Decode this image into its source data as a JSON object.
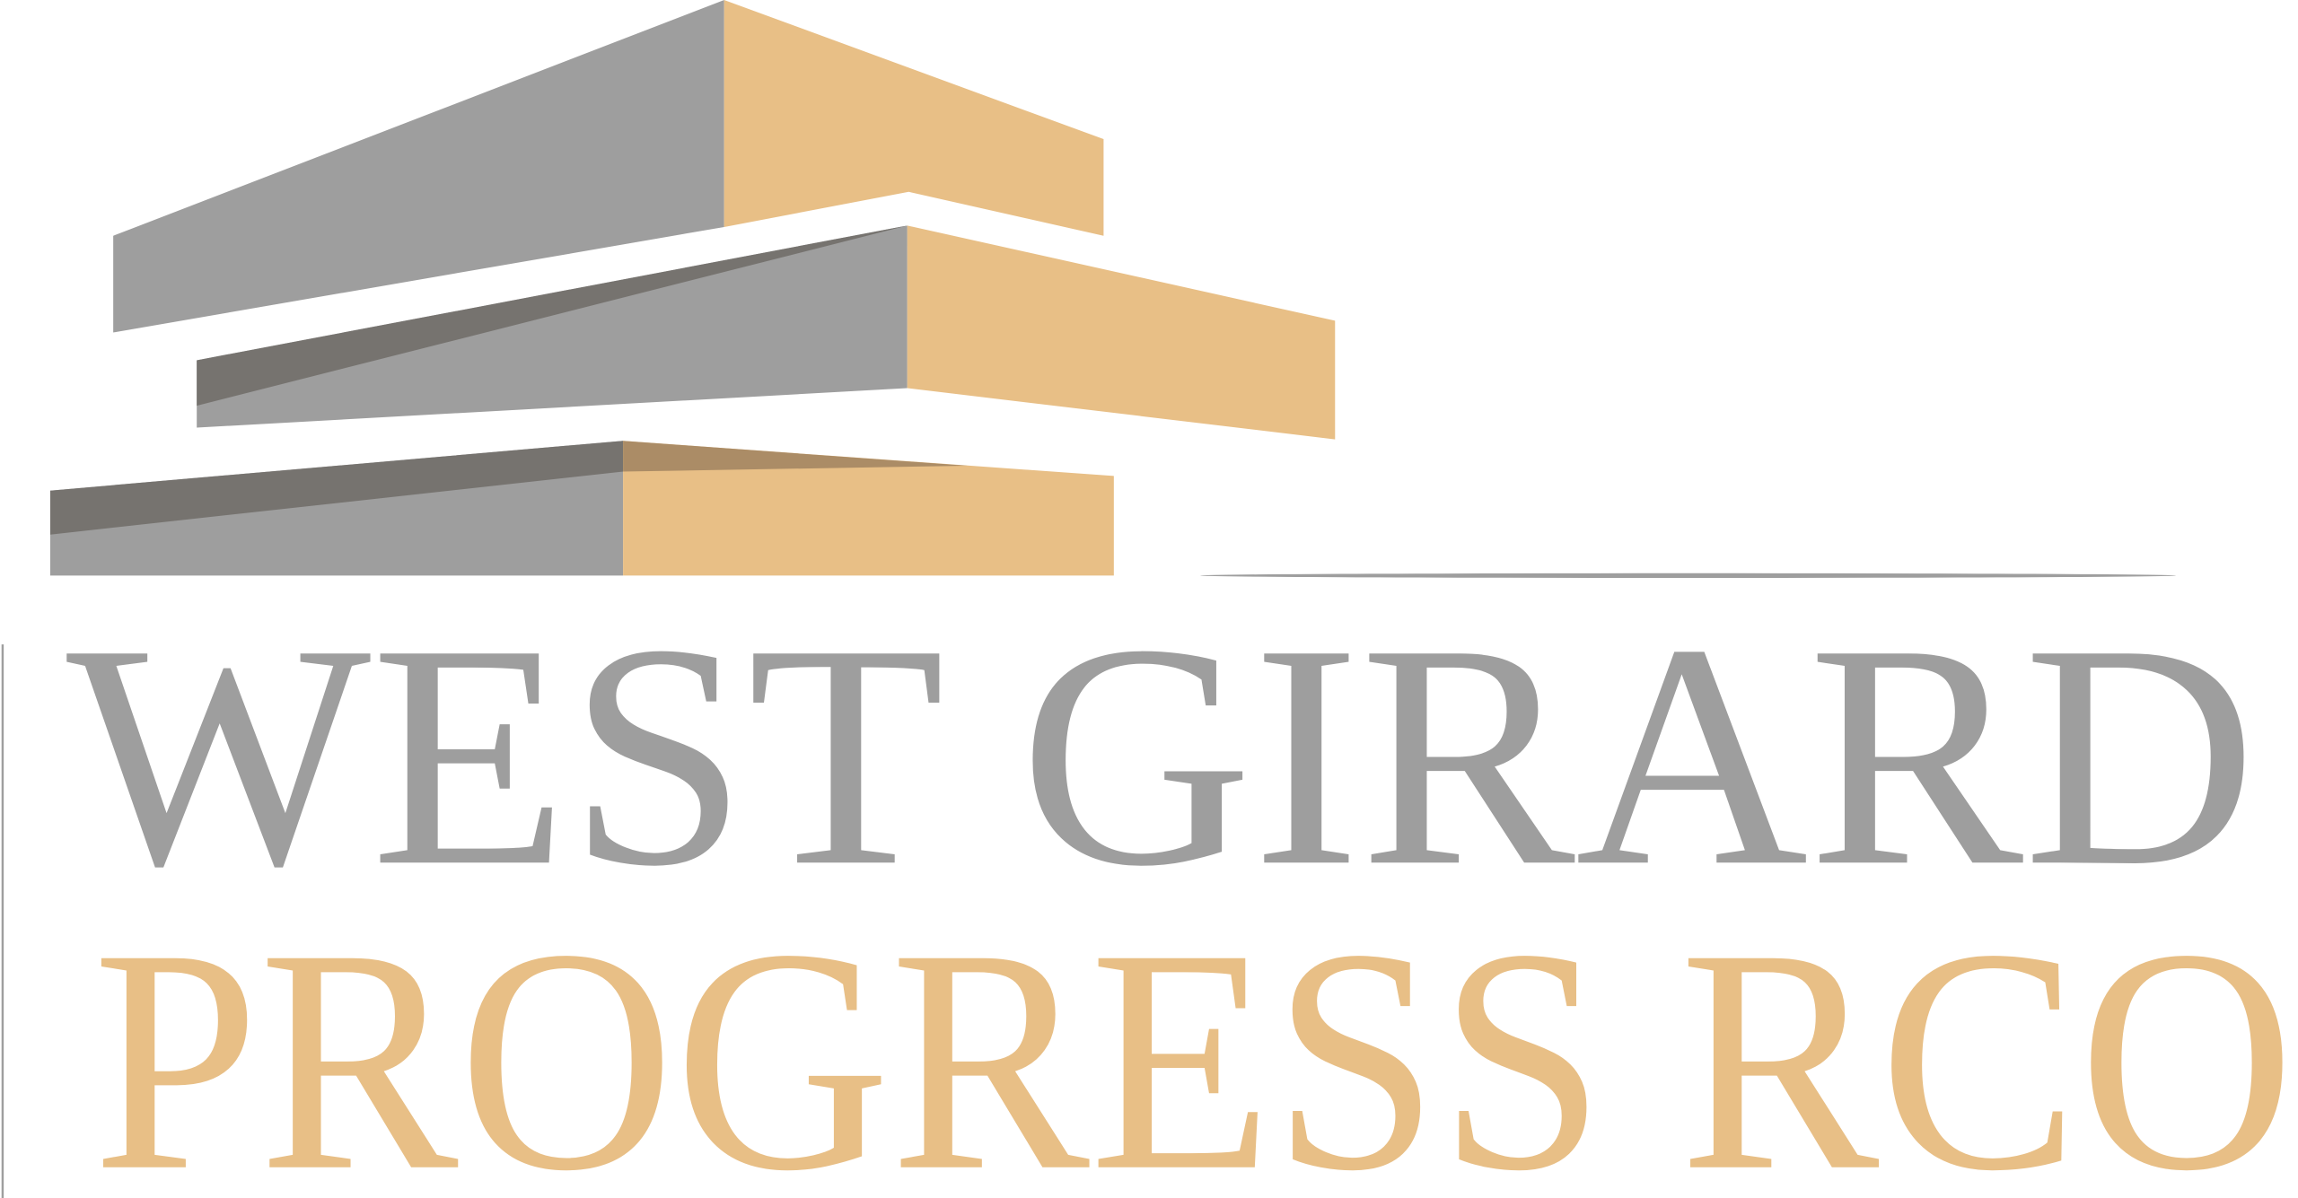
{
  "logo": {
    "line1": "WEST GIRARD",
    "line2": "PROGRESS RCO"
  }
}
